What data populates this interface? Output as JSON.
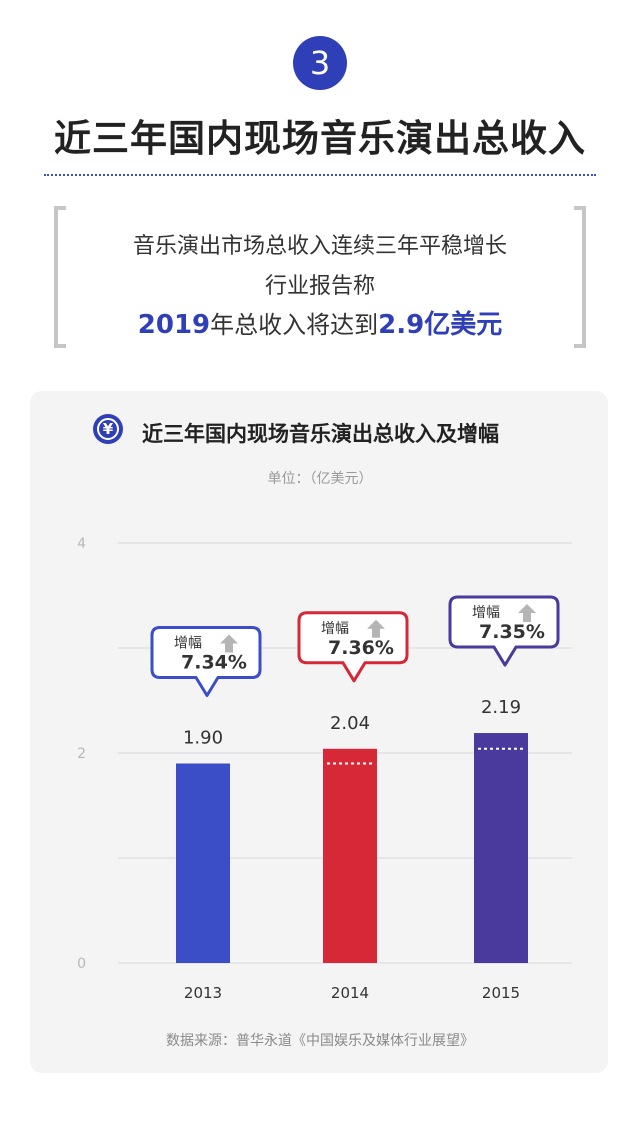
{
  "section_number": "3",
  "main_title": "近三年国内现场音乐演出总收入",
  "intro": {
    "line1": "音乐演出市场总收入连续三年平稳增长",
    "line2": "行业报告称",
    "line3_year": "2019",
    "line3_mid": "年总收入将达到",
    "line3_amount": "2.9亿美元"
  },
  "chart_icon_glyph": "¥",
  "chart_title": "近三年国内现场音乐演出总收入及增幅",
  "unit_label": "单位：（亿美元）",
  "source_label": "数据来源：普华永道《中国娱乐及媒体行业展望》",
  "colors": {
    "accent": "#2f3fb8",
    "y2013": "#3b4ec8",
    "y2014": "#d62837",
    "y2015": "#4a3a9e"
  },
  "chart_data": {
    "type": "bar",
    "categories": [
      "2013",
      "2014",
      "2015"
    ],
    "values": [
      1.9,
      2.04,
      2.19
    ],
    "value_labels": [
      "1.90",
      "2.04",
      "2.19"
    ],
    "growth_label": "增幅",
    "growth": [
      "7.34%",
      "7.36%",
      "7.35%"
    ],
    "ylim": [
      0,
      4
    ],
    "yticks": [
      "0",
      "2",
      "4"
    ],
    "bar_colors": [
      "#3b4ec8",
      "#d62837",
      "#4a3a9e"
    ],
    "grid": true
  }
}
